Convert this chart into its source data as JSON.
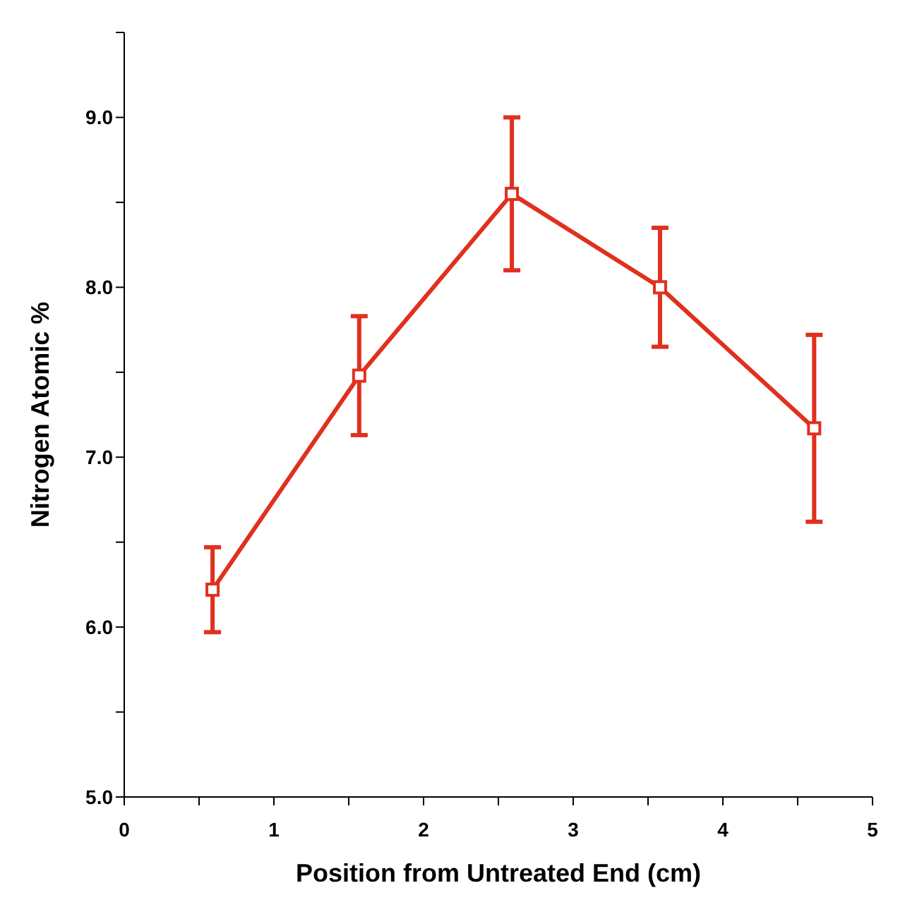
{
  "chart_data": {
    "type": "line",
    "xlabel": "Position from Untreated End (cm)",
    "ylabel": "Nitrogen Atomic %",
    "x": [
      0.59,
      1.57,
      2.59,
      3.58,
      4.61
    ],
    "series": [
      {
        "color": "#e0301e",
        "values": [
          6.22,
          7.48,
          8.55,
          8.0,
          7.17
        ],
        "errors": [
          0.25,
          0.35,
          0.45,
          0.35,
          0.55
        ]
      }
    ],
    "xlim": [
      0,
      5
    ],
    "xticks": [
      0,
      {
        "value": 0.5,
        "label": null
      },
      1,
      {
        "value": 1.5,
        "label": null
      },
      2,
      {
        "value": 2.5,
        "label": null
      },
      3,
      {
        "value": 3.5,
        "label": null
      },
      4,
      {
        "value": 4.5,
        "label": null
      },
      5
    ],
    "ylim": [
      5,
      9.5
    ],
    "yticks": [
      {
        "value": 5,
        "label": "5.0"
      },
      {
        "value": 5.5,
        "label": null
      },
      {
        "value": 6,
        "label": "6.0"
      },
      {
        "value": 6.5,
        "label": null
      },
      {
        "value": 7,
        "label": "7.0"
      },
      {
        "value": 7.5,
        "label": null
      },
      {
        "value": 8,
        "label": "8.0"
      },
      {
        "value": 8.5,
        "label": null
      },
      {
        "value": 9,
        "label": "9.0"
      },
      {
        "value": 9.5,
        "label": null
      }
    ],
    "grid": false,
    "legend": false,
    "marker": "square",
    "line_style": "solid"
  }
}
